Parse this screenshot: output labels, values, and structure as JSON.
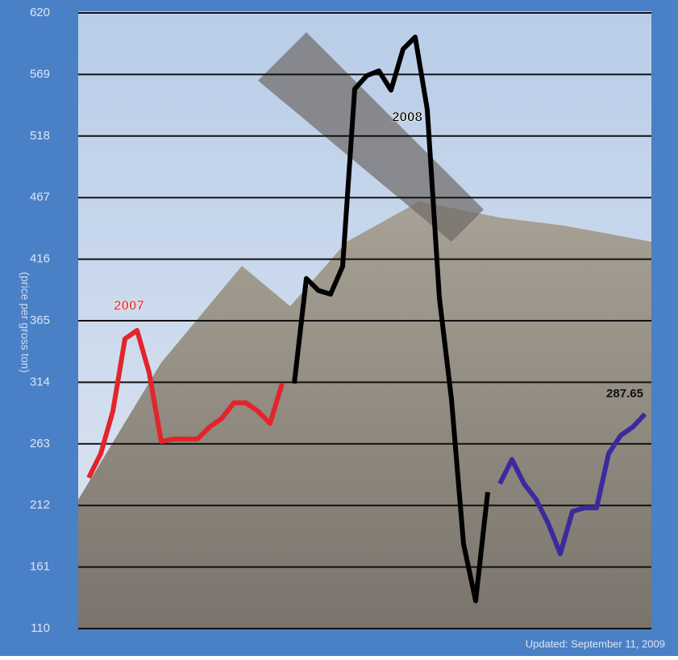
{
  "chart_data": {
    "type": "line",
    "y_label": "(price per gross ton)",
    "footnote": "Updated: September 11, 2009",
    "categories": [
      null,
      null,
      null,
      null,
      null,
      null,
      null,
      null,
      null,
      null,
      null,
      null,
      null,
      null,
      null,
      null,
      null,
      null,
      null,
      null,
      null,
      null,
      null,
      null,
      null,
      null,
      null,
      null,
      null,
      null,
      null,
      null,
      null,
      null,
      null,
      null,
      null,
      null,
      null,
      null,
      null,
      null,
      null,
      null,
      null,
      null,
      null
    ],
    "series": [
      {
        "name": "2007",
        "color": "#e3242b",
        "values": [
          235,
          255,
          290,
          350,
          357,
          322,
          265,
          267,
          267,
          267,
          277,
          284,
          297,
          297,
          290,
          280,
          313,
          null,
          null,
          null,
          null,
          null,
          null,
          null,
          null,
          null,
          null,
          null,
          null,
          null,
          null,
          null,
          null,
          null,
          null,
          null,
          null,
          null,
          null,
          null,
          null,
          null,
          null,
          null,
          null,
          null,
          null
        ]
      },
      {
        "name": "2008",
        "color": "#000000",
        "values": [
          null,
          null,
          null,
          null,
          null,
          null,
          null,
          null,
          null,
          null,
          null,
          null,
          null,
          null,
          null,
          null,
          null,
          313,
          400,
          390,
          387,
          410,
          557,
          568,
          572,
          556,
          590,
          600,
          540,
          384,
          300,
          180,
          133,
          223,
          null,
          null,
          null,
          null,
          null,
          null,
          null,
          null,
          null,
          null,
          null,
          null,
          null
        ]
      },
      {
        "color": "#3b2a9e",
        "values": [
          null,
          null,
          null,
          null,
          null,
          null,
          null,
          null,
          null,
          null,
          null,
          null,
          null,
          null,
          null,
          null,
          null,
          null,
          null,
          null,
          null,
          null,
          null,
          null,
          null,
          null,
          null,
          null,
          null,
          null,
          null,
          null,
          null,
          null,
          230,
          250,
          230,
          217,
          197,
          172,
          207,
          210,
          210,
          255,
          270,
          277,
          287.65
        ]
      }
    ],
    "ylim": [
      110,
      620
    ],
    "yticks": [
      110,
      161,
      212,
      263,
      314,
      365,
      416,
      467,
      518,
      569,
      620
    ],
    "grid": true
  }
}
